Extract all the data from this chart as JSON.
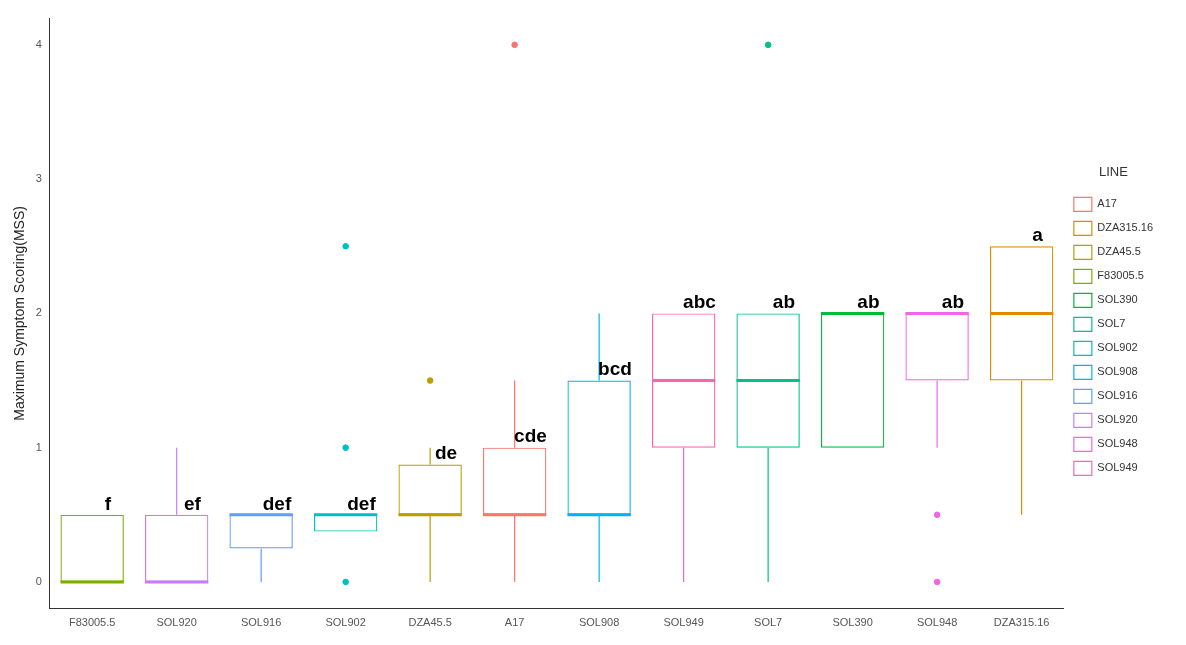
{
  "chart_data": {
    "type": "box",
    "ylabel": "Maximum Symptom Scoring(MSS)",
    "legend_title": "LINE",
    "legend": "right",
    "grid": false,
    "categories": [
      "F83005.5",
      "SOL920",
      "SOL916",
      "SOL902",
      "DZA45.5",
      "A17",
      "SOL908",
      "SOL949",
      "SOL7",
      "SOL390",
      "SOL948",
      "DZA315.16"
    ],
    "ylim": [
      -0.2,
      4.2
    ],
    "yticks": [
      0,
      1,
      2,
      3,
      4
    ],
    "series": [
      {
        "name": "A17",
        "color": "#f8766d",
        "boxes": [
          null,
          null,
          null,
          null,
          null,
          {
            "low": 0,
            "q1": 0.5,
            "median": 0.5,
            "q3": 1,
            "high": 1.5,
            "outliers": [
              4
            ]
          },
          null,
          null,
          null,
          null,
          null,
          null
        ]
      },
      {
        "name": "DZA315.16",
        "color": "#de8c00",
        "boxes": [
          null,
          null,
          null,
          null,
          null,
          null,
          null,
          null,
          null,
          null,
          null,
          {
            "low": 0.5,
            "q1": 1.5,
            "median": 2,
            "q3": 2.5,
            "high": 2.5
          }
        ]
      },
      {
        "name": "DZA45.5",
        "color": "#b79f00",
        "boxes": [
          null,
          null,
          null,
          null,
          {
            "low": 0,
            "q1": 0.5,
            "median": 0.5,
            "q3": 0.875,
            "high": 1,
            "outliers": [
              1.5
            ]
          },
          null,
          null,
          null,
          null,
          null,
          null,
          null
        ]
      },
      {
        "name": "F83005.5",
        "color": "#7cae00",
        "boxes": [
          {
            "low": 0,
            "q1": 0,
            "median": 0,
            "q3": 0.5,
            "high": 0.5
          },
          null,
          null,
          null,
          null,
          null,
          null,
          null,
          null,
          null,
          null,
          null
        ]
      },
      {
        "name": "SOL390",
        "color": "#00ba38",
        "boxes": [
          null,
          null,
          null,
          null,
          null,
          null,
          null,
          null,
          null,
          {
            "low": 1,
            "q1": 1,
            "median": 2,
            "q3": 2,
            "high": 2
          },
          null,
          null
        ]
      },
      {
        "name": "SOL7",
        "color": "#00c08b",
        "boxes": [
          null,
          null,
          null,
          null,
          null,
          null,
          null,
          null,
          {
            "low": 0,
            "q1": 1,
            "median": 1.5,
            "q3": 2,
            "high": 2,
            "outliers": [
              4
            ]
          },
          null,
          null,
          null
        ]
      },
      {
        "name": "SOL902",
        "color": "#00bfc4",
        "boxes": [
          null,
          null,
          null,
          {
            "low": 0.375,
            "q1": 0.375,
            "median": 0.5,
            "q3": 0.5,
            "high": 0.5,
            "outliers": [
              0,
              1,
              2.5
            ]
          },
          null,
          null,
          null,
          null,
          null,
          null,
          null,
          null
        ]
      },
      {
        "name": "SOL908",
        "color": "#00b4f0",
        "boxes": [
          null,
          null,
          null,
          null,
          null,
          null,
          {
            "low": 0,
            "q1": 0.5,
            "median": 0.5,
            "q3": 1.5,
            "high": 2
          },
          null,
          null,
          null,
          null,
          null
        ]
      },
      {
        "name": "SOL916",
        "color": "#619cff",
        "boxes": [
          null,
          null,
          {
            "low": 0,
            "q1": 0.25,
            "median": 0.5,
            "q3": 0.5,
            "high": 0.5
          },
          null,
          null,
          null,
          null,
          null,
          null,
          null,
          null,
          null
        ]
      },
      {
        "name": "SOL920",
        "color": "#c77cff",
        "boxes": [
          null,
          {
            "low": 0,
            "q1": 0,
            "median": 0,
            "q3": 0.5,
            "high": 1
          },
          null,
          null,
          null,
          null,
          null,
          null,
          null,
          null,
          null,
          null
        ]
      },
      {
        "name": "SOL948",
        "color": "#f564e3",
        "boxes": [
          null,
          null,
          null,
          null,
          null,
          null,
          null,
          null,
          null,
          null,
          {
            "low": 1,
            "q1": 1.5,
            "median": 2,
            "q3": 2,
            "high": 2,
            "outliers": [
              0.5,
              0
            ]
          },
          null
        ]
      },
      {
        "name": "SOL949",
        "color": "#ff64b0",
        "boxes": [
          null,
          null,
          null,
          null,
          null,
          null,
          null,
          {
            "low": 0,
            "q1": 1,
            "median": 1.5,
            "q3": 2,
            "high": 2
          },
          null,
          null,
          null,
          null
        ]
      }
    ],
    "annotations": [
      {
        "text": "f",
        "x": "F83005.5",
        "y": 0.5
      },
      {
        "text": "ef",
        "x": "SOL920",
        "y": 0.5
      },
      {
        "text": "def",
        "x": "SOL916",
        "y": 0.5
      },
      {
        "text": "def",
        "x": "SOL902",
        "y": 0.5
      },
      {
        "text": "de",
        "x": "DZA45.5",
        "y": 0.875
      },
      {
        "text": "cde",
        "x": "A17",
        "y": 1
      },
      {
        "text": "bcd",
        "x": "SOL908",
        "y": 1.5
      },
      {
        "text": "abc",
        "x": "SOL949",
        "y": 2
      },
      {
        "text": "ab",
        "x": "SOL7",
        "y": 2
      },
      {
        "text": "ab",
        "x": "SOL390",
        "y": 2
      },
      {
        "text": "ab",
        "x": "SOL948",
        "y": 2
      },
      {
        "text": "a",
        "x": "DZA315.16",
        "y": 2.5
      }
    ]
  }
}
